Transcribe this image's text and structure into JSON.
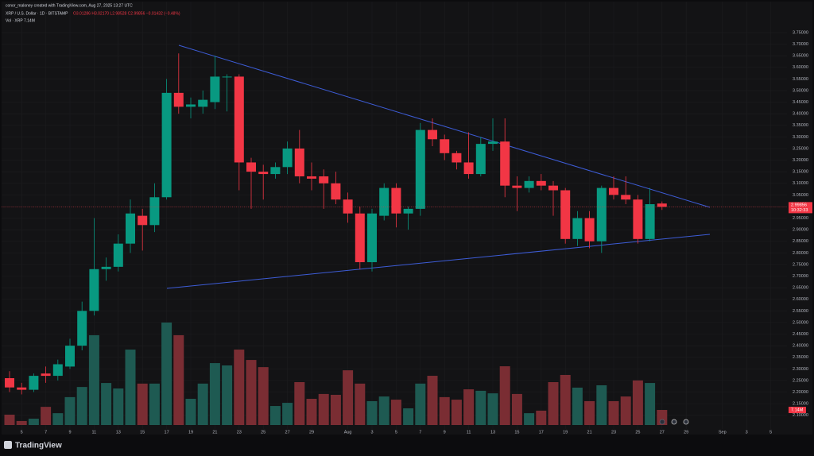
{
  "chart_data": {
    "type": "candlestick",
    "attribution": "conor_maloney created with TradingView.com, Aug 27, 2025 13:27 UTC",
    "title": "XRP / U.S. Dollar · 1D · BITSTAMP",
    "ohlc_legend": "O3.01286 H3.02170 L2.98528 C2.99856 −0.01432 (−0.48%)",
    "volume_legend": "Vol · XRP 7.14M",
    "brand": "TradingView",
    "x_labels": [
      null,
      "5",
      null,
      "7",
      null,
      "9",
      null,
      "11",
      null,
      "13",
      null,
      "15",
      null,
      "17",
      null,
      "19",
      null,
      "21",
      null,
      "23",
      null,
      "25",
      null,
      "27",
      null,
      "29",
      null,
      null,
      "Aug",
      null,
      "3",
      null,
      "5",
      null,
      "7",
      null,
      "9",
      null,
      "11",
      null,
      "13",
      null,
      "15",
      null,
      "17",
      null,
      "19",
      null,
      "21",
      null,
      "23",
      null,
      "25",
      null,
      "27",
      null,
      "29",
      null,
      null,
      "Sep",
      null,
      "3",
      null,
      "5"
    ],
    "open": [
      2.26,
      2.22,
      2.21,
      2.28,
      2.27,
      2.31,
      2.4,
      2.55,
      2.73,
      2.74,
      2.84,
      2.96,
      2.92,
      3.04,
      3.49,
      3.43,
      3.43,
      3.45,
      3.56,
      3.56,
      3.19,
      3.15,
      3.14,
      3.17,
      3.25,
      3.13,
      3.13,
      3.1,
      3.03,
      2.97,
      2.76,
      2.96,
      3.08,
      2.97,
      2.99,
      3.33,
      3.29,
      3.23,
      3.19,
      3.14,
      3.27,
      3.28,
      3.09,
      3.08,
      3.11,
      3.09,
      3.07,
      2.86,
      2.95,
      2.85,
      3.08,
      3.05,
      3.03,
      2.86,
      3.01286
    ],
    "high": [
      2.29,
      2.24,
      2.28,
      2.31,
      2.34,
      2.43,
      2.59,
      2.95,
      2.78,
      2.88,
      3.03,
      2.99,
      3.1,
      3.55,
      3.66,
      3.47,
      3.5,
      3.65,
      3.57,
      3.57,
      3.21,
      3.18,
      3.19,
      3.28,
      3.33,
      3.19,
      3.16,
      3.15,
      3.06,
      3.0,
      2.99,
      3.1,
      3.1,
      3.0,
      3.36,
      3.38,
      3.31,
      3.24,
      3.32,
      3.3,
      3.38,
      3.38,
      3.13,
      3.13,
      3.14,
      3.11,
      3.08,
      2.98,
      2.98,
      3.09,
      3.13,
      3.13,
      3.05,
      3.08,
      3.0217
    ],
    "low": [
      2.2,
      2.19,
      2.2,
      2.24,
      2.25,
      2.3,
      2.38,
      2.53,
      2.68,
      2.72,
      2.8,
      2.81,
      2.89,
      3.03,
      3.4,
      3.38,
      3.4,
      3.42,
      3.41,
      3.07,
      2.99,
      3.03,
      3.12,
      3.14,
      3.1,
      3.07,
      2.99,
      3.01,
      2.93,
      2.73,
      2.72,
      2.94,
      2.91,
      2.9,
      2.96,
      3.26,
      3.2,
      3.16,
      3.12,
      3.13,
      3.24,
      3.04,
      2.98,
      3.06,
      3.07,
      2.96,
      2.84,
      2.83,
      2.82,
      2.8,
      3.03,
      3.01,
      2.84,
      2.85,
      2.98528
    ],
    "close": [
      2.22,
      2.21,
      2.27,
      2.27,
      2.32,
      2.4,
      2.55,
      2.73,
      2.74,
      2.84,
      2.97,
      2.92,
      3.04,
      3.49,
      3.43,
      3.44,
      3.46,
      3.56,
      3.56,
      3.19,
      3.15,
      3.14,
      3.17,
      3.25,
      3.13,
      3.12,
      3.1,
      3.03,
      2.97,
      2.76,
      2.97,
      3.08,
      2.97,
      2.99,
      3.33,
      3.29,
      3.23,
      3.19,
      3.14,
      3.27,
      3.28,
      3.09,
      3.08,
      3.11,
      3.09,
      3.07,
      2.86,
      2.95,
      2.85,
      3.08,
      3.05,
      3.03,
      2.86,
      3.01,
      2.99856
    ],
    "volume": [
      4.9,
      1.9,
      3.0,
      8.6,
      5.6,
      13.2,
      18.0,
      42.5,
      19.9,
      17.3,
      35.7,
      19.6,
      19.6,
      48.5,
      42.5,
      12.4,
      19.6,
      29.3,
      28.2,
      35.7,
      30.8,
      27.4,
      9.0,
      10.5,
      20.3,
      12.4,
      14.7,
      14.3,
      25.9,
      19.6,
      11.3,
      13.5,
      12.0,
      7.9,
      19.6,
      23.3,
      13.2,
      12.0,
      16.9,
      16.2,
      15.0,
      27.8,
      14.7,
      5.6,
      6.8,
      20.3,
      23.7,
      17.7,
      11.3,
      18.8,
      11.3,
      13.5,
      21.1,
      19.9,
      7.14
    ],
    "volume_label": "7.14M",
    "last_price": 2.99856,
    "countdown": "10:32:33",
    "up_color": "#089981",
    "down_color": "#f23645",
    "volume_up_color": "#1e5a52",
    "volume_down_color": "#7a2d33",
    "ylim": [
      2.058,
      3.856
    ],
    "yticks": [
      {
        "value": 2.1,
        "label": "2.10000"
      },
      {
        "value": 2.15,
        "label": "2.15000"
      },
      {
        "value": 2.2,
        "label": "2.20000"
      },
      {
        "value": 2.25,
        "label": "2.25000"
      },
      {
        "value": 2.3,
        "label": "2.30000"
      },
      {
        "value": 2.35,
        "label": "2.35000"
      },
      {
        "value": 2.4,
        "label": "2.40000"
      },
      {
        "value": 2.45,
        "label": "2.45000"
      },
      {
        "value": 2.5,
        "label": "2.50000"
      },
      {
        "value": 2.55,
        "label": "2.55000"
      },
      {
        "value": 2.6,
        "label": "2.60000"
      },
      {
        "value": 2.65,
        "label": "2.65000"
      },
      {
        "value": 2.7,
        "label": "2.70000"
      },
      {
        "value": 2.75,
        "label": "2.75000"
      },
      {
        "value": 2.8,
        "label": "2.80000"
      },
      {
        "value": 2.85,
        "label": "2.85000"
      },
      {
        "value": 2.9,
        "label": "2.90000"
      },
      {
        "value": 2.95,
        "label": "2.95000"
      },
      {
        "value": 3.0,
        "label": "3.00000"
      },
      {
        "value": 3.05,
        "label": "3.05000"
      },
      {
        "value": 3.1,
        "label": "3.10000"
      },
      {
        "value": 3.15,
        "label": "3.15000"
      },
      {
        "value": 3.2,
        "label": "3.20000"
      },
      {
        "value": 3.25,
        "label": "3.25000"
      },
      {
        "value": 3.3,
        "label": "3.30000"
      },
      {
        "value": 3.35,
        "label": "3.35000"
      },
      {
        "value": 3.4,
        "label": "3.40000"
      },
      {
        "value": 3.45,
        "label": "3.45000"
      },
      {
        "value": 3.5,
        "label": "3.50000"
      },
      {
        "value": 3.55,
        "label": "3.55000"
      },
      {
        "value": 3.6,
        "label": "3.60000"
      },
      {
        "value": 3.65,
        "label": "3.65000"
      },
      {
        "value": 3.7,
        "label": "3.70000"
      },
      {
        "value": 3.75,
        "label": "3.75000"
      }
    ],
    "grid": true
  }
}
